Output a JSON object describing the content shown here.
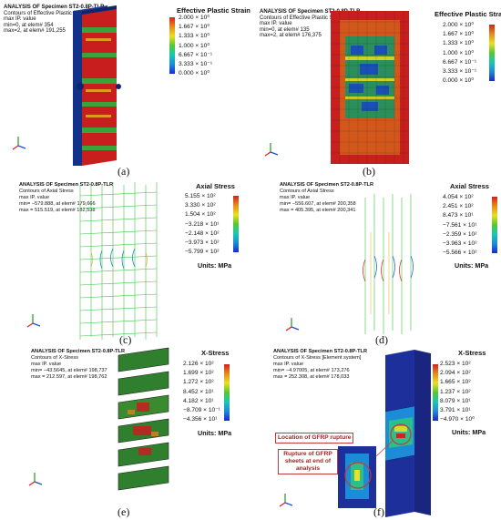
{
  "panels": [
    {
      "label": "(a)",
      "header": [
        "ANALYSIS OF Specimen ST2-0.8P-TLR",
        "Contours of Effective Plastic Strain",
        "max IP. value",
        "min=0, at elem# 354",
        "max=2, at elem# 191,255"
      ],
      "legend_title": "Effective Plastic Strain",
      "legend_values": [
        "2.000 × 10⁰",
        "1.667 × 10⁰",
        "1.333 × 10⁰",
        "1.000 × 10⁰",
        "6.667 × 10⁻¹",
        "3.333 × 10⁻¹",
        "0.000 × 10⁰"
      ],
      "units": ""
    },
    {
      "label": "(b)",
      "header": [
        "ANALYSIS OF Specimen ST2-0.8P-TLR",
        "Contours of Effective Plastic Strain",
        "max IP. value",
        "min=0, at elem# 135",
        "max=2, at elem# 176,375"
      ],
      "legend_title": "Effective Plastic Strain",
      "legend_values": [
        "2.000 × 10⁰",
        "1.667 × 10⁰",
        "1.333 × 10⁰",
        "1.000 × 10⁰",
        "6.667 × 10⁻¹",
        "3.333 × 10⁻¹",
        "0.000 × 10⁰"
      ],
      "units": ""
    },
    {
      "label": "(c)",
      "header": [
        "ANALYSIS OF Specimen ST2-0.8P-TLR",
        "Contours of Axial Stress",
        "max IP. value",
        "min= −579.888, at elem# 179,666",
        "max = 515.519, at elem# 182,538"
      ],
      "legend_title": "Axial Stress",
      "legend_values": [
        "5.155 × 10²",
        "3.330 × 10²",
        "1.504 × 10²",
        "−3.218 × 10¹",
        "−2.148 × 10²",
        "−3.973 × 10²",
        "−5.799 × 10²"
      ],
      "units": "Units: MPa"
    },
    {
      "label": "(d)",
      "header": [
        "ANALYSIS OF Specimen ST2-0.8P-TLR",
        "Contours of Axial Stress",
        "max IP. value",
        "min= −556.607, at elem# 200,358",
        "max = 405.395, at elem# 200,341"
      ],
      "legend_title": "Axial Stress",
      "legend_values": [
        "4.054 × 10²",
        "2.451 × 10²",
        "8.473 × 10¹",
        "−7.561 × 10¹",
        "−2.359 × 10²",
        "−3.963 × 10²",
        "−5.566 × 10²"
      ],
      "units": "Units: MPa"
    },
    {
      "label": "(e)",
      "header": [
        "ANALYSIS OF Specimen ST2-0.8P-TLR",
        "Contours of X-Stress",
        "max IP. value",
        "min= −43.5645, at elem# 198,737",
        "max = 212.597, at elem# 198,762"
      ],
      "legend_title": "X-Stress",
      "legend_values": [
        "2.126 × 10²",
        "1.699 × 10²",
        "1.272 × 10²",
        "8.452 × 10¹",
        "4.182 × 10¹",
        "−8.709 × 10⁻¹",
        "−4.356 × 10¹"
      ],
      "units": "Units: MPa"
    },
    {
      "label": "(f)",
      "header": [
        "ANALYSIS OF Specimen ST2-0.8P-TLR",
        "Contours of X-Stress [Element system]",
        "max IP. value",
        "min= −4.97005, at elem# 173,276",
        "max = 252.308, at elem# 178,033"
      ],
      "legend_title": "X-Stress",
      "legend_values": [
        "2.523 × 10²",
        "2.094 × 10²",
        "1.665 × 10²",
        "1.237 × 10²",
        "8.079 × 10¹",
        "3.791 × 10¹",
        "−4.970 × 10⁰"
      ],
      "units": "Units: MPa",
      "annotations": [
        "Location of GFRP rupture",
        "Rupture of GFRP sheets at end of analysis"
      ]
    }
  ],
  "colors": {
    "scale": [
      "#d42020",
      "#e88a1a",
      "#e8e020",
      "#55c832",
      "#18c8b4",
      "#1c8cd8",
      "#1a2ac8"
    ]
  }
}
